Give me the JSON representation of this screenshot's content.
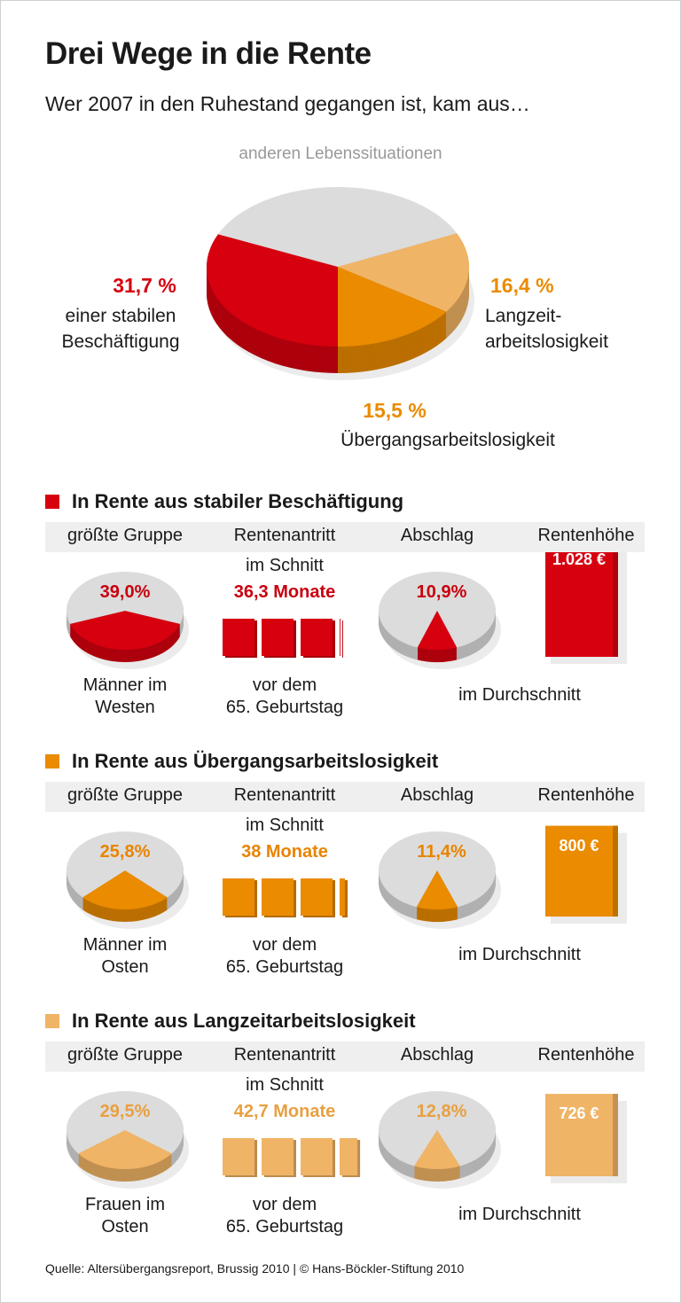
{
  "title": "Drei Wege in die Rente",
  "subtitle": "Wer 2007 in den Ruhestand gegangen ist, kam aus…",
  "chart_data": [
    {
      "type": "pie",
      "slices": [
        {
          "label": "einer stabilen Beschäftigung",
          "value": 31.7,
          "value_label": "31,7 %",
          "color": "#d7000f"
        },
        {
          "label": "anderen Lebenssituationen",
          "value": 36.4,
          "value_label": "",
          "color": "#dcdcdc"
        },
        {
          "label": "Langzeit-arbeitslosigkeit",
          "value": 16.4,
          "value_label": "16,4 %",
          "color": "#f0b466"
        },
        {
          "label": "Übergangsarbeitslosigkeit",
          "value": 15.5,
          "value_label": "15,5 %",
          "color": "#ea8b00"
        }
      ]
    }
  ],
  "labels": {
    "other": "anderen Lebenssituationen",
    "stable_pct": "31,7 %",
    "stable_l1": "einer stabilen",
    "stable_l2": "Beschäftigung",
    "long_pct": "16,4 %",
    "long_l1": "Langzeit-",
    "long_l2": "arbeitslosigkeit",
    "trans_pct": "15,5 %",
    "trans_l1": "Übergangsarbeitslosigkeit"
  },
  "columns": [
    "größte Gruppe",
    "Rentenantritt",
    "Abschlag",
    "Rentenhöhe"
  ],
  "sections": [
    {
      "title": "In Rente aus stabiler Beschäftigung",
      "color": "#d7000f",
      "text_color": "#c8000e",
      "group_pct": 39.0,
      "group_pct_label": "39,0%",
      "group_l1": "Männer im",
      "group_l2": "Westen",
      "avg_label": "im Schnitt",
      "months": 36.3,
      "months_label": "36,3 Monate",
      "before_l1": "vor dem",
      "before_l2": "65. Geburtstag",
      "abschlag": 10.9,
      "abschlag_label": "10,9%",
      "rente": 1028,
      "rente_label": "1.028 €",
      "durchschnitt": "im Durchschnitt"
    },
    {
      "title": "In Rente aus Übergangsarbeitslosigkeit",
      "color": "#ea8b00",
      "text_color": "#e88400",
      "group_pct": 25.8,
      "group_pct_label": "25,8%",
      "group_l1": "Männer im",
      "group_l2": "Osten",
      "avg_label": "im Schnitt",
      "months": 38,
      "months_label": "38 Monate",
      "before_l1": "vor dem",
      "before_l2": "65. Geburtstag",
      "abschlag": 11.4,
      "abschlag_label": "11,4%",
      "rente": 800,
      "rente_label": "800 €",
      "durchschnitt": "im Durchschnitt"
    },
    {
      "title": "In Rente aus Langzeitarbeitslosigkeit",
      "color": "#f0b466",
      "text_color": "#e8a040",
      "group_pct": 29.5,
      "group_pct_label": "29,5%",
      "group_l1": "Frauen im",
      "group_l2": "Osten",
      "avg_label": "im Schnitt",
      "months": 42.7,
      "months_label": "42,7 Monate",
      "before_l1": "vor dem",
      "before_l2": "65. Geburtstag",
      "abschlag": 12.8,
      "abschlag_label": "12,8%",
      "rente": 726,
      "rente_label": "726 €",
      "durchschnitt": "im Durchschnitt"
    }
  ],
  "footer": "Quelle: Altersübergangsreport, Brussig 2010 | © Hans-Böckler-Stiftung 2010"
}
